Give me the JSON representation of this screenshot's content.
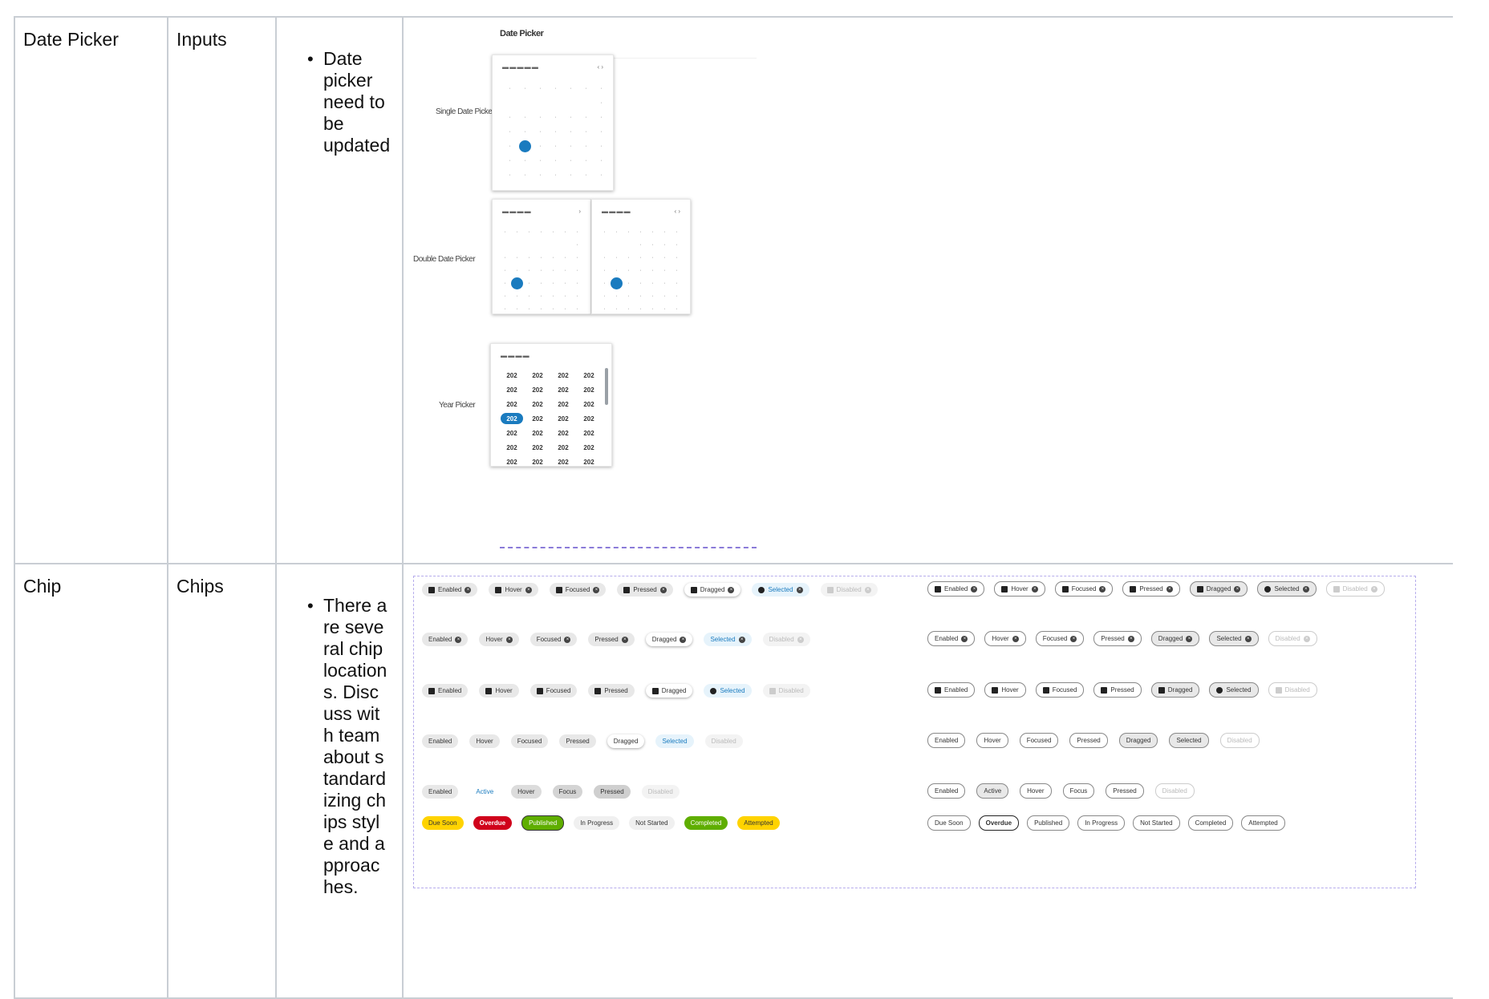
{
  "rows": [
    {
      "component": "Date Picker",
      "category": "Inputs",
      "note": "Date picker need to be updated",
      "preview": {
        "title": "Date Picker",
        "labels": [
          "Single Date Picker",
          "Double Date Picker",
          "Year Picker"
        ],
        "years": [
          "202",
          "202",
          "202",
          "202",
          "202",
          "202",
          "202",
          "202",
          "202",
          "202",
          "202",
          "202",
          "202",
          "202",
          "202",
          "202",
          "202",
          "202",
          "202",
          "202",
          "202",
          "202",
          "202",
          "202",
          "202",
          "202",
          "202",
          "202"
        ]
      }
    },
    {
      "component": "Chip",
      "category": "Chips",
      "note": "There are several chip locations. Discuss with team about standardizing chips style and approaches.",
      "states7": [
        "Enabled",
        "Hover",
        "Focused",
        "Pressed",
        "Dragged",
        "Selected",
        "Disabled"
      ],
      "states_b": [
        "Enabled",
        "Active",
        "Hover",
        "Focus",
        "Pressed",
        "Disabled"
      ],
      "statuses": [
        "Due Soon",
        "Overdue",
        "Published",
        "In Progress",
        "Not Started",
        "Completed",
        "Attempted"
      ]
    }
  ],
  "colors": {
    "accent": "#1a7bbf",
    "border": "#c9ced4",
    "dash": "#8a7bd8",
    "yellow": "#ffd300",
    "red": "#d0021b",
    "green": "#5fae00"
  }
}
